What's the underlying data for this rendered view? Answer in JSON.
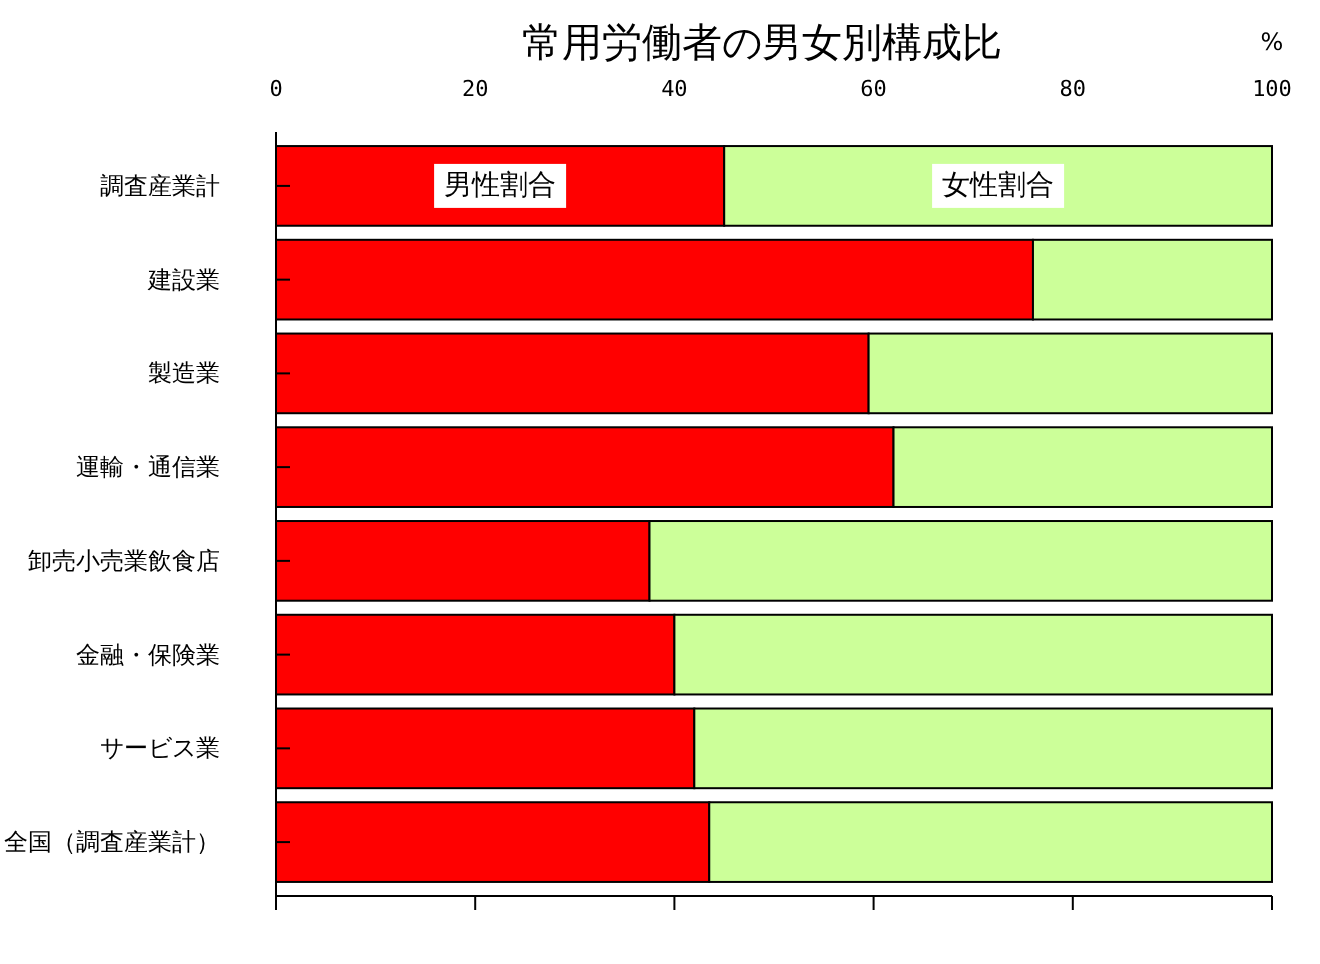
{
  "chart_data": {
    "type": "bar",
    "orientation": "horizontal",
    "stacked": true,
    "title": "常用労働者の男女別構成比",
    "xlabel": "%",
    "categories": [
      "調査産業計",
      "建設業",
      "製造業",
      "運輸・通信業",
      "卸売小売業飲食店",
      "金融・保険業",
      "サービス業",
      "全国（調査産業計）"
    ],
    "series": [
      {
        "name": "男性割合",
        "color": "#ff0000",
        "values": [
          45,
          76,
          59.5,
          62,
          37.5,
          40,
          42,
          43.5
        ]
      },
      {
        "name": "女性割合",
        "color": "#ccff99",
        "values": [
          55,
          24,
          40.5,
          38,
          62.5,
          60,
          58,
          56.5
        ]
      }
    ],
    "xlim": [
      0,
      100
    ],
    "xticks": [
      0,
      20,
      40,
      60,
      80,
      100
    ]
  }
}
